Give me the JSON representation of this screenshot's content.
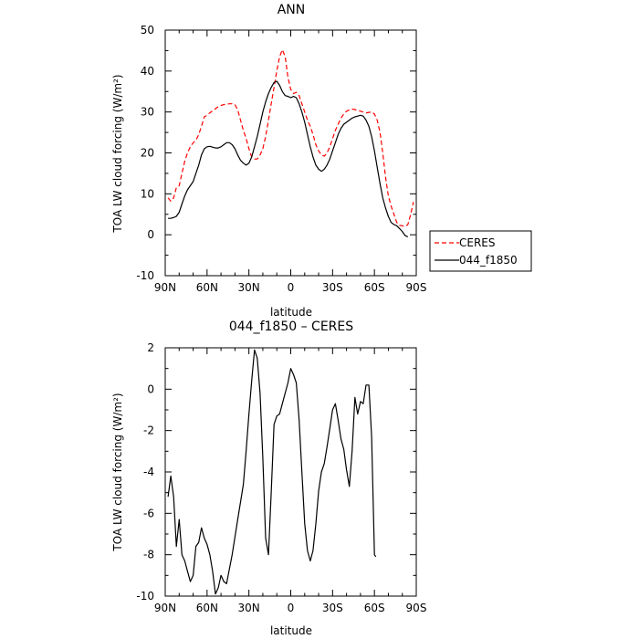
{
  "chart_data": [
    {
      "type": "line",
      "title": "ANN",
      "xlabel": "latitude",
      "ylabel": "TOA LW cloud forcing (W/m²)",
      "xlim": [
        90,
        -90
      ],
      "ylim": [
        -10,
        50
      ],
      "xticks": [
        90,
        60,
        30,
        0,
        -30,
        -60,
        -90
      ],
      "xtick_labels": [
        "90N",
        "60N",
        "30N",
        "0",
        "30S",
        "60S",
        "90S"
      ],
      "yticks": [
        -10,
        0,
        10,
        20,
        30,
        40,
        50
      ],
      "ytick_labels": [
        "-10",
        "0",
        "10",
        "20",
        "30",
        "40",
        "50"
      ],
      "legend_position": "right",
      "series": [
        {
          "name": "CERES",
          "color": "#ff0000",
          "dash": "dashed",
          "points": [
            [
              88,
              9
            ],
            [
              86,
              8.2
            ],
            [
              84,
              9
            ],
            [
              82,
              11.5
            ],
            [
              80,
              12
            ],
            [
              78,
              15
            ],
            [
              76,
              18
            ],
            [
              74,
              20
            ],
            [
              72,
              21.5
            ],
            [
              70,
              22.5
            ],
            [
              68,
              23
            ],
            [
              66,
              24.5
            ],
            [
              64,
              26.5
            ],
            [
              62,
              28.8
            ],
            [
              60,
              29.2
            ],
            [
              58,
              29.8
            ],
            [
              56,
              30.3
            ],
            [
              54,
              30.8
            ],
            [
              52,
              31.3
            ],
            [
              50,
              31.6
            ],
            [
              48,
              31.8
            ],
            [
              46,
              31.9
            ],
            [
              44,
              32
            ],
            [
              42,
              32
            ],
            [
              40,
              31.8
            ],
            [
              38,
              30.5
            ],
            [
              36,
              28
            ],
            [
              34,
              25.5
            ],
            [
              32,
              23.5
            ],
            [
              30,
              21
            ],
            [
              28,
              19
            ],
            [
              26,
              18.5
            ],
            [
              24,
              18.5
            ],
            [
              22,
              19.5
            ],
            [
              20,
              21
            ],
            [
              18,
              24
            ],
            [
              16,
              28
            ],
            [
              14,
              32
            ],
            [
              12,
              36
            ],
            [
              10,
              40
            ],
            [
              8,
              43.5
            ],
            [
              6,
              45.2
            ],
            [
              4,
              43.5
            ],
            [
              2,
              38.5
            ],
            [
              0,
              35.5
            ],
            [
              -2,
              34.5
            ],
            [
              -4,
              34.8
            ],
            [
              -6,
              34
            ],
            [
              -8,
              32
            ],
            [
              -10,
              30
            ],
            [
              -12,
              28
            ],
            [
              -14,
              26.5
            ],
            [
              -16,
              24.5
            ],
            [
              -18,
              22
            ],
            [
              -20,
              20.5
            ],
            [
              -22,
              19.5
            ],
            [
              -24,
              19.2
            ],
            [
              -26,
              20
            ],
            [
              -28,
              21.5
            ],
            [
              -30,
              23.5
            ],
            [
              -32,
              25.5
            ],
            [
              -34,
              27
            ],
            [
              -36,
              28.5
            ],
            [
              -38,
              29.5
            ],
            [
              -40,
              30.2
            ],
            [
              -42,
              30.5
            ],
            [
              -44,
              30.7
            ],
            [
              -46,
              30.6
            ],
            [
              -48,
              30.4
            ],
            [
              -50,
              30.2
            ],
            [
              -52,
              30
            ],
            [
              -54,
              29.8
            ],
            [
              -56,
              29.9
            ],
            [
              -58,
              30
            ],
            [
              -60,
              29.5
            ],
            [
              -62,
              28
            ],
            [
              -64,
              25
            ],
            [
              -66,
              20
            ],
            [
              -68,
              14
            ],
            [
              -70,
              9.5
            ],
            [
              -72,
              7
            ],
            [
              -74,
              5
            ],
            [
              -76,
              3
            ],
            [
              -78,
              2.3
            ],
            [
              -80,
              2.2
            ],
            [
              -82,
              2
            ],
            [
              -84,
              2.5
            ],
            [
              -86,
              5
            ],
            [
              -88,
              8
            ]
          ]
        },
        {
          "name": "044_f1850",
          "color": "#000000",
          "dash": "solid",
          "points": [
            [
              88,
              4
            ],
            [
              86,
              4
            ],
            [
              84,
              4.2
            ],
            [
              82,
              4.5
            ],
            [
              80,
              5.5
            ],
            [
              78,
              7.5
            ],
            [
              76,
              9.5
            ],
            [
              74,
              11
            ],
            [
              72,
              12
            ],
            [
              70,
              13
            ],
            [
              68,
              15
            ],
            [
              66,
              17
            ],
            [
              64,
              19.5
            ],
            [
              62,
              21
            ],
            [
              60,
              21.5
            ],
            [
              58,
              21.6
            ],
            [
              56,
              21.4
            ],
            [
              54,
              21.2
            ],
            [
              52,
              21.2
            ],
            [
              50,
              21.5
            ],
            [
              48,
              22
            ],
            [
              46,
              22.5
            ],
            [
              44,
              22.5
            ],
            [
              42,
              22
            ],
            [
              40,
              21
            ],
            [
              38,
              19.5
            ],
            [
              36,
              18.2
            ],
            [
              34,
              17.5
            ],
            [
              32,
              17
            ],
            [
              30,
              17.5
            ],
            [
              28,
              19
            ],
            [
              26,
              21.5
            ],
            [
              24,
              24
            ],
            [
              22,
              27
            ],
            [
              20,
              30
            ],
            [
              18,
              32.5
            ],
            [
              16,
              34.5
            ],
            [
              14,
              36
            ],
            [
              12,
              37.2
            ],
            [
              10,
              37.5
            ],
            [
              8,
              36.5
            ],
            [
              6,
              35
            ],
            [
              4,
              34
            ],
            [
              2,
              33.8
            ],
            [
              0,
              33.5
            ],
            [
              -2,
              33.8
            ],
            [
              -4,
              33.5
            ],
            [
              -6,
              32
            ],
            [
              -8,
              30
            ],
            [
              -10,
              27.5
            ],
            [
              -12,
              24.5
            ],
            [
              -14,
              21.5
            ],
            [
              -16,
              19
            ],
            [
              -18,
              17
            ],
            [
              -20,
              16
            ],
            [
              -22,
              15.5
            ],
            [
              -24,
              16
            ],
            [
              -26,
              17
            ],
            [
              -28,
              18.5
            ],
            [
              -30,
              20.5
            ],
            [
              -32,
              22.5
            ],
            [
              -34,
              24.5
            ],
            [
              -36,
              26
            ],
            [
              -38,
              27
            ],
            [
              -40,
              27.5
            ],
            [
              -42,
              28
            ],
            [
              -44,
              28.5
            ],
            [
              -46,
              28.8
            ],
            [
              -48,
              29
            ],
            [
              -50,
              29.2
            ],
            [
              -52,
              29
            ],
            [
              -54,
              28
            ],
            [
              -56,
              26.5
            ],
            [
              -58,
              24
            ],
            [
              -60,
              20.5
            ],
            [
              -62,
              16.5
            ],
            [
              -64,
              12.5
            ],
            [
              -66,
              9
            ],
            [
              -68,
              6.5
            ],
            [
              -70,
              4.5
            ],
            [
              -72,
              3
            ],
            [
              -74,
              2.5
            ],
            [
              -76,
              2.2
            ],
            [
              -78,
              1.5
            ],
            [
              -80,
              0.8
            ],
            [
              -82,
              -0.2
            ],
            [
              -84,
              -0.5
            ]
          ]
        }
      ]
    },
    {
      "type": "line",
      "title": "044_f1850 – CERES",
      "xlabel": "latitude",
      "ylabel": "TOA LW cloud forcing (W/m²)",
      "xlim": [
        90,
        -90
      ],
      "ylim": [
        -10,
        2
      ],
      "xticks": [
        90,
        60,
        30,
        0,
        -30,
        -60,
        -90
      ],
      "xtick_labels": [
        "90N",
        "60N",
        "30N",
        "0",
        "30S",
        "60S",
        "90S"
      ],
      "yticks": [
        -10,
        -8,
        -6,
        -4,
        -2,
        0,
        2
      ],
      "ytick_labels": [
        "-10",
        "-8",
        "-6",
        "-4",
        "-2",
        "0",
        "2"
      ],
      "series": [
        {
          "color": "#000000",
          "dash": "solid",
          "points": [
            [
              88,
              -5.2
            ],
            [
              86,
              -4.2
            ],
            [
              84,
              -5.2
            ],
            [
              82,
              -7.6
            ],
            [
              80,
              -6.3
            ],
            [
              78,
              -8
            ],
            [
              76,
              -8.3
            ],
            [
              74,
              -8.8
            ],
            [
              72,
              -9.3
            ],
            [
              70,
              -9
            ],
            [
              68,
              -7.6
            ],
            [
              66,
              -7.4
            ],
            [
              64,
              -6.7
            ],
            [
              62,
              -7.2
            ],
            [
              60,
              -7.5
            ],
            [
              58,
              -8
            ],
            [
              56,
              -8.8
            ],
            [
              54,
              -9.9
            ],
            [
              52,
              -9.6
            ],
            [
              50,
              -9
            ],
            [
              48,
              -9.3
            ],
            [
              46,
              -9.4
            ],
            [
              42,
              -8
            ],
            [
              38,
              -6.3
            ],
            [
              34,
              -4.6
            ],
            [
              32,
              -3
            ],
            [
              30,
              -1.2
            ],
            [
              28,
              0.4
            ],
            [
              26,
              1.9
            ],
            [
              24,
              1.5
            ],
            [
              22,
              -0.2
            ],
            [
              20,
              -3.3
            ],
            [
              18,
              -7.2
            ],
            [
              16,
              -8
            ],
            [
              14,
              -5
            ],
            [
              12,
              -1.7
            ],
            [
              10,
              -1.3
            ],
            [
              8,
              -1.2
            ],
            [
              6,
              -0.7
            ],
            [
              2,
              0.3
            ],
            [
              0,
              1
            ],
            [
              -2,
              0.7
            ],
            [
              -4,
              0.3
            ],
            [
              -6,
              -1.5
            ],
            [
              -8,
              -4
            ],
            [
              -10,
              -6.5
            ],
            [
              -12,
              -7.8
            ],
            [
              -14,
              -8.3
            ],
            [
              -16,
              -7.8
            ],
            [
              -18,
              -6.5
            ],
            [
              -20,
              -4.9
            ],
            [
              -22,
              -4
            ],
            [
              -24,
              -3.6
            ],
            [
              -26,
              -2.8
            ],
            [
              -28,
              -1.9
            ],
            [
              -30,
              -1
            ],
            [
              -32,
              -0.7
            ],
            [
              -34,
              -1.5
            ],
            [
              -36,
              -2.4
            ],
            [
              -38,
              -2.9
            ],
            [
              -40,
              -3.9
            ],
            [
              -42,
              -4.7
            ],
            [
              -44,
              -3
            ],
            [
              -46,
              -0.4
            ],
            [
              -48,
              -1.2
            ],
            [
              -50,
              -0.6
            ],
            [
              -52,
              -0.7
            ],
            [
              -54,
              0.2
            ],
            [
              -56,
              0.2
            ],
            [
              -58,
              -2.3
            ],
            [
              -60,
              -8
            ],
            [
              -61,
              -8.1
            ]
          ]
        }
      ]
    }
  ]
}
